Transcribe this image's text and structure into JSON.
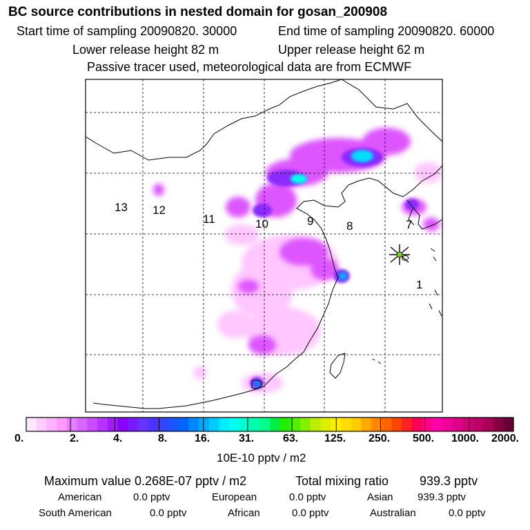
{
  "header": {
    "title": "BC  source contributions in nested domain for gosan_200908",
    "start_time": "Start time of sampling 20090820. 30000",
    "end_time": "End time of sampling 20090820. 60000",
    "lower_height": "Lower release height   82 m",
    "upper_height": "Upper release height   62 m",
    "tracer_note": "Passive tracer used, meteorological data are from ECMWF"
  },
  "map": {
    "region_labels": [
      "13",
      "12",
      "11",
      "10",
      "9",
      "8",
      "7",
      "1"
    ],
    "receptor": "gosan-star-marker"
  },
  "colorbar": {
    "tick_labels": [
      "0.",
      "2.",
      "4.",
      "8.",
      "16.",
      "31.",
      "63.",
      "125.",
      "250.",
      "500.",
      "1000.",
      "2000."
    ],
    "units": "10E-10 pptv / m2",
    "colors": [
      "#ffe6ff",
      "#ffccff",
      "#ffb3ff",
      "#ff99ff",
      "#e67fff",
      "#d966ff",
      "#cc4dff",
      "#b833ff",
      "#a31aff",
      "#8c00ff",
      "#7a1aff",
      "#6633ff",
      "#4d33ff",
      "#3344ff",
      "#1a55ff",
      "#0066ff",
      "#0088ff",
      "#00aaff",
      "#00ccff",
      "#00eeff",
      "#00ffee",
      "#00ffcc",
      "#00ffaa",
      "#00ff88",
      "#00ee44",
      "#22ee00",
      "#55ee00",
      "#88ee00",
      "#bbee00",
      "#ddee00",
      "#ffee00",
      "#ffdd00",
      "#ffcc00",
      "#ffaa00",
      "#ff8800",
      "#ff6600",
      "#ff4400",
      "#ff2222",
      "#ff0055",
      "#ff0088",
      "#ff00aa",
      "#ee0099",
      "#dd0088",
      "#cc0077",
      "#bb0066",
      "#aa0055",
      "#880044",
      "#660033"
    ]
  },
  "summary": {
    "max_label": "Maximum value  0.268E-07 pptv / m2",
    "total_label": "Total mixing ratio",
    "total_value": "939.3 pptv",
    "american_label": "American",
    "american_value": "0.0 pptv",
    "european_label": "European",
    "european_value": "0.0 pptv",
    "asian_label": "Asian",
    "asian_value": "939.3 pptv",
    "south_american_label": "South American",
    "south_american_value": "0.0 pptv",
    "african_label": "African",
    "african_value": "0.0 pptv",
    "australian_label": "Australian",
    "australian_value": "0.0 pptv"
  }
}
